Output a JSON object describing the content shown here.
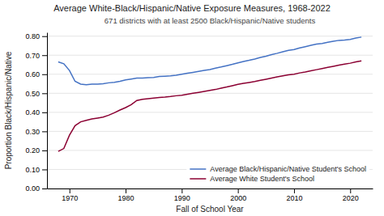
{
  "chart_data": {
    "type": "line",
    "title": "Average White-Black/Hispanic/Native Exposure Measures, 1968-2022",
    "subtitle": "671 districts with at least 2500 Black/Hispanic/Native students",
    "xlabel": "Fall of School Year",
    "ylabel": "Proportion Black/Hispanic/Native",
    "x": [
      1968,
      1969,
      1970,
      1971,
      1972,
      1973,
      1974,
      1975,
      1976,
      1977,
      1978,
      1979,
      1980,
      1981,
      1982,
      1983,
      1984,
      1985,
      1986,
      1987,
      1988,
      1989,
      1990,
      1991,
      1992,
      1993,
      1994,
      1995,
      1996,
      1997,
      1998,
      1999,
      2000,
      2001,
      2002,
      2003,
      2004,
      2005,
      2006,
      2007,
      2008,
      2009,
      2010,
      2011,
      2012,
      2013,
      2014,
      2015,
      2016,
      2017,
      2018,
      2019,
      2020,
      2021,
      2022
    ],
    "series": [
      {
        "name": "Average Black/Hispanic/Native Student's School",
        "color": "#4472C4",
        "values": [
          0.665,
          0.655,
          0.62,
          0.563,
          0.548,
          0.545,
          0.548,
          0.548,
          0.55,
          0.555,
          0.558,
          0.563,
          0.57,
          0.575,
          0.58,
          0.58,
          0.582,
          0.583,
          0.588,
          0.59,
          0.592,
          0.595,
          0.6,
          0.605,
          0.61,
          0.615,
          0.62,
          0.625,
          0.632,
          0.638,
          0.645,
          0.652,
          0.66,
          0.667,
          0.673,
          0.68,
          0.688,
          0.695,
          0.703,
          0.71,
          0.718,
          0.725,
          0.73,
          0.738,
          0.745,
          0.752,
          0.758,
          0.762,
          0.768,
          0.773,
          0.778,
          0.78,
          0.783,
          0.79,
          0.795
        ]
      },
      {
        "name": "Average White Student's School",
        "color": "#8B0032",
        "values": [
          0.195,
          0.21,
          0.28,
          0.33,
          0.35,
          0.358,
          0.365,
          0.37,
          0.375,
          0.385,
          0.398,
          0.412,
          0.425,
          0.44,
          0.462,
          0.468,
          0.472,
          0.475,
          0.478,
          0.48,
          0.483,
          0.487,
          0.49,
          0.495,
          0.5,
          0.505,
          0.51,
          0.515,
          0.52,
          0.527,
          0.533,
          0.54,
          0.547,
          0.552,
          0.557,
          0.562,
          0.568,
          0.574,
          0.58,
          0.586,
          0.592,
          0.597,
          0.6,
          0.607,
          0.612,
          0.618,
          0.624,
          0.63,
          0.636,
          0.642,
          0.648,
          0.653,
          0.658,
          0.665,
          0.67
        ]
      }
    ],
    "xlim": [
      1966,
      2024
    ],
    "ylim": [
      0.0,
      0.82
    ],
    "xticks": [
      1970,
      1980,
      1990,
      2000,
      2010,
      2020
    ],
    "yticks": [
      {
        "value": 0.0,
        "label": "0.00"
      },
      {
        "value": 0.1,
        "label": "0.10"
      },
      {
        "value": 0.2,
        "label": "0.20"
      },
      {
        "value": 0.3,
        "label": "0.30"
      },
      {
        "value": 0.4,
        "label": "0.40"
      },
      {
        "value": 0.5,
        "label": "0.50"
      },
      {
        "value": 0.6,
        "label": "0.60"
      },
      {
        "value": 0.7,
        "label": "0.70"
      },
      {
        "value": 0.8,
        "label": "0.80"
      }
    ],
    "grid": true,
    "legend": "lower right"
  }
}
